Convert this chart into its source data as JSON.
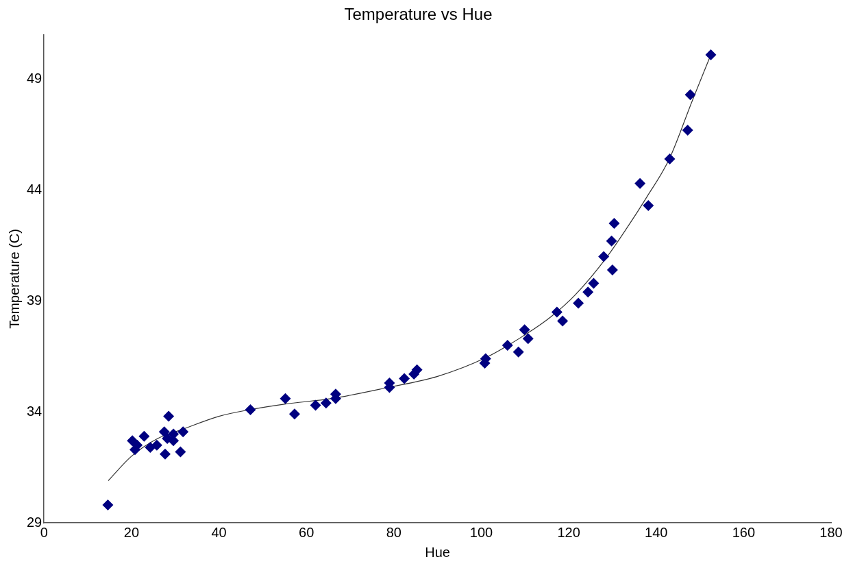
{
  "chart_data": {
    "type": "scatter",
    "title": "Temperature vs Hue",
    "xlabel": "Hue",
    "ylabel": "Temperature (C)",
    "xlim": [
      0,
      180
    ],
    "xticks": [
      0,
      20,
      40,
      60,
      80,
      100,
      120,
      140,
      160,
      180
    ],
    "ylim": [
      29,
      51
    ],
    "yticks": [
      29,
      34,
      39,
      44,
      49
    ],
    "grid": false,
    "legend": false,
    "marker": "diamond",
    "series": [
      {
        "type": "scatter",
        "color": "#000080",
        "x": [
          14.6,
          20.2,
          20.8,
          21.3,
          22.9,
          24.3,
          25.8,
          27.5,
          27.7,
          28.5,
          28.2,
          29.6,
          29.6,
          31.2,
          31.8,
          47.2,
          55.2,
          57.3,
          62.1,
          64.5,
          66.7,
          66.7,
          79.0,
          79.0,
          82.4,
          84.6,
          85.3,
          100.8,
          101.0,
          106.0,
          108.5,
          109.9,
          110.7,
          117.3,
          118.6,
          122.2,
          124.4,
          125.7,
          128.0,
          129.8,
          130.0,
          130.4,
          136.3,
          138.2,
          143.1,
          147.2,
          147.8,
          152.5
        ],
        "values": [
          29.8,
          32.7,
          32.3,
          32.5,
          32.9,
          32.4,
          32.5,
          33.1,
          32.1,
          33.8,
          32.8,
          33.0,
          32.7,
          32.2,
          33.1,
          34.1,
          34.6,
          33.9,
          34.3,
          34.4,
          34.8,
          34.6,
          35.3,
          35.1,
          35.5,
          35.7,
          35.9,
          36.2,
          36.4,
          37.0,
          36.7,
          37.7,
          37.3,
          38.5,
          38.1,
          38.9,
          39.4,
          39.8,
          41.0,
          41.7,
          40.4,
          42.5,
          44.3,
          43.3,
          45.4,
          46.7,
          48.3,
          50.1
        ]
      },
      {
        "type": "line",
        "color": "#333333",
        "marker": "none",
        "line_style": "solid",
        "x": [
          14.7,
          20,
          26,
          31.5,
          40,
          47.1,
          55,
          65.8,
          78.7,
          90,
          101.1,
          110.2,
          116,
          121.6,
          128.8,
          133,
          137.9,
          143.0,
          148.2,
          152.5
        ],
        "values": [
          30.9,
          32.0,
          32.8,
          33.2,
          33.8,
          34.1,
          34.35,
          34.6,
          35.1,
          35.6,
          36.45,
          37.5,
          38.3,
          39.3,
          41.0,
          42.2,
          43.7,
          45.4,
          48.0,
          50.1
        ]
      }
    ]
  }
}
